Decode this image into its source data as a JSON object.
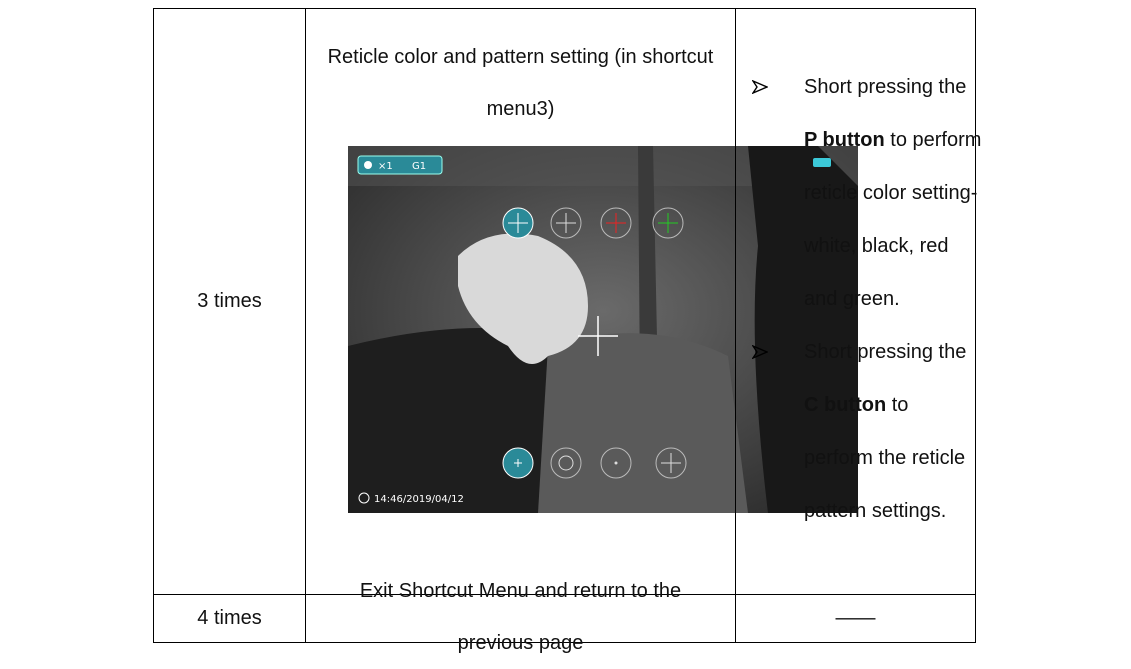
{
  "table": {
    "rows": [
      [
        "3 times",
        {
          "title": "Reticle color and pattern setting (in shortcut menu3)",
          "screen": {
            "zoom": "×1",
            "mode": "G1",
            "timestamp": "14:46/2019/04/12"
          }
        },
        {
          "bullets": [
            {
              "pre": "Short pressing the ",
              "bold": "P button",
              "post": " to perform reticle color setting-white, black, red and green."
            },
            {
              "pre": "Short pressing the ",
              "bold": "C button",
              "post": " to perform the reticle pattern settings."
            }
          ]
        }
      ],
      [
        "4 times",
        "Exit Shortcut Menu and return to the previous page",
        "——"
      ]
    ]
  }
}
